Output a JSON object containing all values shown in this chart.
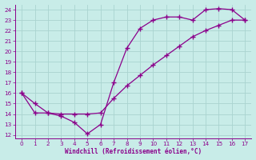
{
  "xlabel": "Windchill (Refroidissement éolien,°C)",
  "bg_color": "#c8ece8",
  "grid_color": "#aad4d0",
  "line_color": "#8b008b",
  "xlim": [
    -0.5,
    17.5
  ],
  "ylim": [
    11.7,
    24.5
  ],
  "xticks": [
    0,
    1,
    2,
    3,
    4,
    5,
    6,
    7,
    8,
    9,
    10,
    11,
    12,
    13,
    14,
    15,
    16,
    17
  ],
  "yticks": [
    12,
    13,
    14,
    15,
    16,
    17,
    18,
    19,
    20,
    21,
    22,
    23,
    24
  ],
  "line1_x": [
    0,
    1,
    2,
    3,
    4,
    5,
    6,
    7,
    8,
    9,
    10,
    11,
    12,
    13,
    14,
    15,
    16,
    17
  ],
  "line1_y": [
    16,
    15,
    14.1,
    13.8,
    13.2,
    12.1,
    13,
    17,
    20.3,
    22.2,
    23,
    23.3,
    23.3,
    23,
    24,
    24.1,
    24,
    23
  ],
  "line2_x": [
    0,
    1,
    2,
    3,
    4,
    5,
    6,
    7,
    8,
    9,
    10,
    11,
    12,
    13,
    14,
    15,
    16,
    17
  ],
  "line2_y": [
    16,
    14.1,
    14.1,
    14.0,
    14.0,
    14.0,
    14.1,
    15.5,
    16.7,
    17.7,
    18.7,
    19.6,
    20.5,
    21.4,
    22.0,
    22.5,
    23.0,
    23.0
  ]
}
